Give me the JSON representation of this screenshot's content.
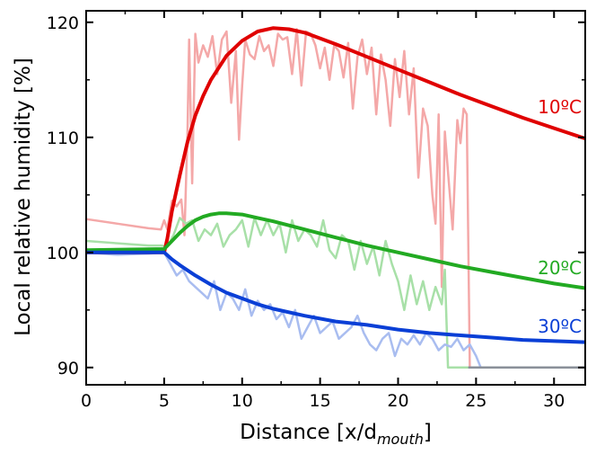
{
  "chart_data": {
    "type": "line",
    "title": "",
    "xlabel": "Distance [x/d",
    "xlabel_sub": "mouth",
    "xlabel_end": "]",
    "ylabel": "Local relative humidity [%]",
    "xlim": [
      0,
      32
    ],
    "ylim": [
      88.5,
      121
    ],
    "xticks": [
      0,
      5,
      10,
      15,
      20,
      25,
      30
    ],
    "yticks": [
      90,
      100,
      110,
      120
    ],
    "grid": false,
    "colors": {
      "red": "#e00000",
      "red_light": "#f4a8a8",
      "green": "#22aa22",
      "green_light": "#a8e0a8",
      "blue": "#0a3fd6",
      "blue_light": "#a9bdf0",
      "gray": "#8a9099"
    },
    "labels": {
      "red": "10ºC",
      "green": "20ºC",
      "blue": "30ºC"
    },
    "series": [
      {
        "name": "10ºC",
        "kind": "model",
        "color": "#e00000",
        "x": [
          0,
          5,
          5.2,
          5.5,
          6,
          6.5,
          7,
          7.5,
          8,
          9,
          10,
          11,
          12,
          13,
          14,
          16,
          18,
          20,
          22,
          24,
          26,
          28,
          30,
          32
        ],
        "y": [
          100,
          100,
          101.2,
          103.6,
          106.7,
          109.6,
          111.9,
          113.6,
          115.0,
          117.1,
          118.4,
          119.2,
          119.5,
          119.4,
          119.1,
          118.1,
          117.0,
          115.9,
          114.8,
          113.7,
          112.7,
          111.7,
          110.8,
          109.9
        ]
      },
      {
        "name": "20ºC",
        "kind": "model",
        "color": "#22aa22",
        "x": [
          0,
          5,
          5.5,
          6,
          6.5,
          7,
          7.5,
          8,
          8.5,
          9,
          10,
          11,
          12,
          14,
          16,
          18,
          20,
          22,
          24,
          26,
          28,
          30,
          32
        ],
        "y": [
          100.2,
          100.3,
          101.0,
          101.7,
          102.3,
          102.8,
          103.1,
          103.3,
          103.4,
          103.4,
          103.3,
          103.0,
          102.7,
          102.0,
          101.3,
          100.6,
          100.0,
          99.4,
          98.8,
          98.3,
          97.8,
          97.3,
          96.9
        ]
      },
      {
        "name": "30ºC",
        "kind": "model",
        "color": "#0a3fd6",
        "x": [
          0,
          4.5,
          5,
          5.5,
          6,
          7,
          8,
          9,
          10,
          11,
          12,
          14,
          16,
          18,
          20,
          22,
          24,
          26,
          28,
          30,
          32
        ],
        "y": [
          100,
          100,
          100,
          99.4,
          98.9,
          98.0,
          97.2,
          96.5,
          96.0,
          95.5,
          95.1,
          94.5,
          94.0,
          93.7,
          93.3,
          93.0,
          92.8,
          92.6,
          92.4,
          92.3,
          92.2
        ]
      },
      {
        "name": "10ºC measured",
        "kind": "measured",
        "color": "#f4a8a8",
        "x": [
          0,
          2,
          4,
          4.8,
          5.0,
          5.2,
          5.5,
          5.8,
          6.1,
          6.3,
          6.5,
          6.6,
          6.8,
          7.0,
          7.2,
          7.5,
          7.8,
          8.1,
          8.4,
          8.7,
          9.0,
          9.3,
          9.6,
          9.8,
          10.0,
          10.2,
          10.5,
          10.8,
          11.1,
          11.4,
          11.7,
          12.0,
          12.3,
          12.6,
          12.9,
          13.2,
          13.5,
          13.8,
          14.1,
          14.4,
          14.7,
          15.0,
          15.3,
          15.6,
          15.9,
          16.2,
          16.5,
          16.8,
          17.1,
          17.4,
          17.7,
          18.0,
          18.3,
          18.6,
          18.9,
          19.2,
          19.5,
          19.8,
          20.1,
          20.4,
          20.7,
          21.0,
          21.3,
          21.6,
          21.9,
          22.2,
          22.4,
          22.6,
          22.8,
          23.0,
          23.2,
          23.5,
          23.8,
          24.0,
          24.2,
          24.4,
          24.6,
          25.0
        ],
        "y": [
          102.9,
          102.5,
          102.1,
          102.0,
          102.8,
          102.0,
          104.5,
          104.0,
          104.6,
          101.5,
          110.5,
          118.5,
          106.0,
          119.0,
          116.5,
          118.0,
          117.0,
          118.8,
          115.5,
          118.5,
          119.2,
          113.0,
          117.5,
          109.8,
          114.5,
          118.5,
          117.2,
          116.8,
          118.8,
          117.5,
          118.0,
          116.2,
          119.0,
          118.5,
          118.7,
          115.5,
          119.4,
          114.5,
          119.2,
          119.0,
          118.0,
          116.0,
          117.8,
          115.0,
          118.0,
          117.5,
          115.2,
          118.2,
          112.5,
          117.0,
          118.5,
          115.5,
          117.8,
          112.0,
          117.2,
          115.0,
          111.0,
          116.8,
          113.5,
          117.5,
          112.0,
          116.0,
          106.5,
          112.5,
          111.0,
          105.0,
          102.5,
          112.0,
          97.0,
          110.5,
          107.0,
          102.0,
          111.5,
          109.5,
          112.5,
          112.0,
          90.0,
          90.0
        ]
      },
      {
        "name": "20ºC measured",
        "kind": "measured",
        "color": "#a8e0a8",
        "x": [
          0,
          2,
          4,
          4.8,
          5.2,
          5.6,
          6.0,
          6.4,
          6.8,
          7.2,
          7.6,
          8.0,
          8.4,
          8.8,
          9.2,
          9.6,
          10.0,
          10.4,
          10.8,
          11.2,
          11.6,
          12.0,
          12.4,
          12.8,
          13.2,
          13.6,
          14.0,
          14.4,
          14.8,
          15.2,
          15.6,
          16.0,
          16.4,
          16.8,
          17.2,
          17.6,
          18.0,
          18.4,
          18.8,
          19.2,
          19.6,
          20.0,
          20.4,
          20.8,
          21.2,
          21.6,
          22.0,
          22.4,
          22.8,
          23.0,
          23.2,
          23.6,
          24.0,
          25.0
        ],
        "y": [
          101.0,
          100.8,
          100.6,
          100.6,
          100.5,
          101.5,
          103.0,
          102.5,
          102.8,
          101.0,
          102.0,
          101.5,
          102.5,
          100.5,
          101.5,
          102.0,
          102.8,
          100.5,
          103.0,
          101.5,
          102.8,
          101.5,
          102.5,
          100.0,
          102.8,
          101.0,
          102.0,
          101.5,
          100.5,
          102.8,
          100.2,
          99.5,
          101.5,
          101.0,
          98.5,
          101.0,
          99.0,
          100.5,
          98.0,
          101.0,
          99.0,
          97.5,
          95.0,
          98.0,
          95.5,
          97.5,
          95.0,
          97.0,
          95.5,
          98.5,
          90.0,
          90.0,
          90.0,
          90.0
        ]
      },
      {
        "name": "30ºC measured",
        "kind": "measured",
        "color": "#a9bdf0",
        "x": [
          0,
          2,
          4,
          5.0,
          5.4,
          5.8,
          6.2,
          6.6,
          7.0,
          7.4,
          7.8,
          8.2,
          8.6,
          9.0,
          9.4,
          9.8,
          10.2,
          10.6,
          11.0,
          11.4,
          11.8,
          12.2,
          12.6,
          13.0,
          13.4,
          13.8,
          14.2,
          14.6,
          15.0,
          15.4,
          15.8,
          16.2,
          16.6,
          17.0,
          17.4,
          17.8,
          18.2,
          18.6,
          19.0,
          19.4,
          19.8,
          20.2,
          20.6,
          21.0,
          21.4,
          21.8,
          22.2,
          22.6,
          23.0,
          23.4,
          23.8,
          24.2,
          24.6,
          25.0,
          25.3,
          25.6
        ],
        "y": [
          100.0,
          99.8,
          99.9,
          100.0,
          99.0,
          98.0,
          98.5,
          97.5,
          97.0,
          96.5,
          96.0,
          97.5,
          95.0,
          96.5,
          96.0,
          95.0,
          96.8,
          94.5,
          95.8,
          95.0,
          95.5,
          94.2,
          94.8,
          93.5,
          95.0,
          92.5,
          93.5,
          94.5,
          93.0,
          93.5,
          94.0,
          92.5,
          93.0,
          93.5,
          94.5,
          93.0,
          92.0,
          91.5,
          92.5,
          93.0,
          91.0,
          92.5,
          92.0,
          92.8,
          92.0,
          93.0,
          92.5,
          91.5,
          92.0,
          91.8,
          92.5,
          91.5,
          92.0,
          91.0,
          90.0,
          90.0
        ]
      },
      {
        "name": "baseline",
        "kind": "measured",
        "color": "#8a9099",
        "x": [
          24.5,
          32
        ],
        "y": [
          90,
          90
        ]
      }
    ]
  }
}
